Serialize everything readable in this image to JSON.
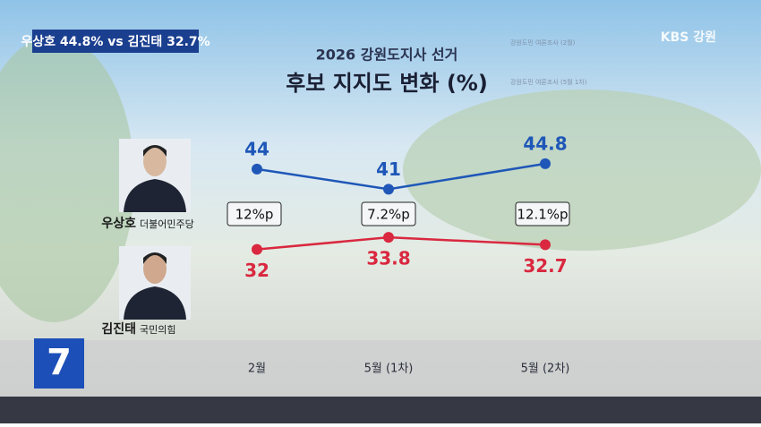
{
  "chart_data": {
    "type": "line",
    "headline": "우상호 44.8% vs 김진태 32.7%",
    "broadcaster": "KBS 강원",
    "channel": "7",
    "title": "2026 강원도지사 선거",
    "subtitle": "후보 지지도 변화 (%)",
    "notes": [
      "강원도민 여론조사 (2월)",
      "강원도민 여론조사 (5월 1차)"
    ],
    "categories": [
      "2월",
      "5월 (1차)",
      "5월 (2차)"
    ],
    "series": [
      {
        "name": "우상호",
        "party": "더불어민주당",
        "color": "#1f57b8",
        "values": [
          44,
          41,
          44.8
        ]
      },
      {
        "name": "김진태",
        "party": "국민의힘",
        "color": "#d9283f",
        "values": [
          32,
          33.8,
          32.7
        ]
      }
    ],
    "gaps": {
      "values": [
        12,
        7.2,
        12.1
      ],
      "value_labels": [
        "12%p",
        "7.2%p",
        "12.1%p"
      ]
    },
    "ylim": [
      25,
      50
    ]
  }
}
